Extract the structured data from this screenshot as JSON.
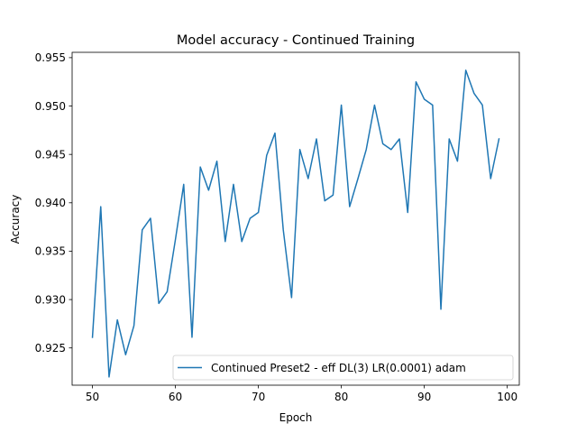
{
  "chart_data": {
    "type": "line",
    "title": "Model accuracy - Continued Training",
    "xlabel": "Epoch",
    "ylabel": "Accuracy",
    "xlim": [
      47.55,
      101.45
    ],
    "ylim": [
      0.92115,
      0.95555
    ],
    "xticks": [
      50,
      60,
      70,
      80,
      90,
      100
    ],
    "yticks": [
      0.925,
      0.93,
      0.935,
      0.94,
      0.945,
      0.95,
      0.955
    ],
    "ytick_labels": [
      "0.925",
      "0.930",
      "0.935",
      "0.940",
      "0.945",
      "0.950",
      "0.955"
    ],
    "grid": false,
    "legend_position": "lower-right",
    "series": [
      {
        "name": "Continued Preset2 - eff DL(3) LR(0.0001) adam",
        "color": "#1f77b4",
        "x": [
          50,
          51,
          52,
          53,
          54,
          55,
          56,
          57,
          58,
          59,
          60,
          61,
          62,
          63,
          64,
          65,
          66,
          67,
          68,
          69,
          70,
          71,
          72,
          73,
          74,
          75,
          76,
          77,
          78,
          79,
          80,
          81,
          82,
          83,
          84,
          85,
          86,
          87,
          88,
          89,
          90,
          91,
          92,
          93,
          94,
          95,
          96,
          97,
          98,
          99
        ],
        "y": [
          0.9261,
          0.9396,
          0.922,
          0.9279,
          0.9243,
          0.9273,
          0.9372,
          0.9384,
          0.9296,
          0.9308,
          0.9362,
          0.9419,
          0.9261,
          0.9437,
          0.9413,
          0.9443,
          0.936,
          0.9419,
          0.936,
          0.9384,
          0.939,
          0.9449,
          0.9472,
          0.9372,
          0.9302,
          0.9455,
          0.9425,
          0.9466,
          0.9402,
          0.9408,
          0.9501,
          0.9396,
          0.9425,
          0.9455,
          0.9501,
          0.9461,
          0.9455,
          0.9466,
          0.939,
          0.9525,
          0.9507,
          0.9501,
          0.929,
          0.9466,
          0.9443,
          0.9537,
          0.9513,
          0.9501,
          0.9425,
          0.9466
        ]
      }
    ]
  }
}
